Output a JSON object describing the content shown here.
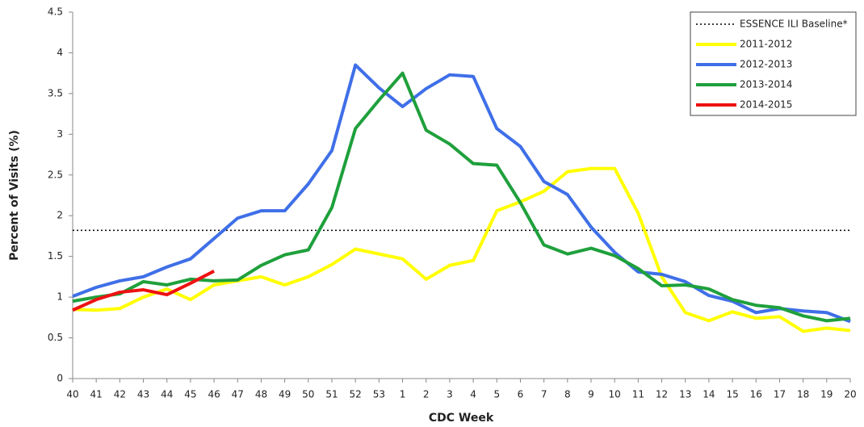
{
  "chart_data": {
    "type": "line",
    "xlabel": "CDC Week",
    "ylabel": "Percent of Visits (%)",
    "categories": [
      "40",
      "41",
      "42",
      "43",
      "44",
      "45",
      "46",
      "47",
      "48",
      "49",
      "50",
      "51",
      "52",
      "53",
      "1",
      "2",
      "3",
      "4",
      "5",
      "6",
      "7",
      "8",
      "9",
      "10",
      "11",
      "12",
      "13",
      "14",
      "15",
      "16",
      "17",
      "18",
      "19",
      "20"
    ],
    "ylim": [
      0,
      4.5
    ],
    "yticks": [
      0,
      0.5,
      1,
      1.5,
      2,
      2.5,
      3,
      3.5,
      4,
      4.5
    ],
    "legend": "top-right",
    "series": [
      {
        "name": "ESSENCE ILI Baseline*",
        "color": "#000000",
        "style": "dotted",
        "values": [
          1.82,
          1.82,
          1.82,
          1.82,
          1.82,
          1.82,
          1.82,
          1.82,
          1.82,
          1.82,
          1.82,
          1.82,
          1.82,
          1.82,
          1.82,
          1.82,
          1.82,
          1.82,
          1.82,
          1.82,
          1.82,
          1.82,
          1.82,
          1.82,
          1.82,
          1.82,
          1.82,
          1.82,
          1.82,
          1.82,
          1.82,
          1.82,
          1.82,
          1.82
        ]
      },
      {
        "name": "2011-2012",
        "color": "#ffff00",
        "style": "solid",
        "values": [
          0.85,
          0.84,
          0.86,
          1.0,
          1.1,
          0.97,
          1.15,
          1.2,
          1.25,
          1.15,
          1.25,
          1.4,
          1.59,
          1.53,
          1.47,
          1.22,
          1.39,
          1.45,
          2.06,
          2.17,
          2.3,
          2.54,
          2.58,
          2.58,
          2.03,
          1.25,
          0.81,
          0.71,
          0.82,
          0.74,
          0.76,
          0.58,
          0.62,
          0.59
        ]
      },
      {
        "name": "2012-2013",
        "color": "#3f6fe8",
        "style": "solid",
        "values": [
          1.01,
          1.12,
          1.2,
          1.25,
          1.37,
          1.47,
          1.72,
          1.97,
          2.06,
          2.06,
          2.39,
          2.8,
          3.85,
          3.57,
          3.34,
          3.56,
          3.73,
          3.71,
          3.07,
          2.85,
          2.42,
          2.26,
          1.86,
          1.55,
          1.31,
          1.28,
          1.19,
          1.02,
          0.95,
          0.81,
          0.86,
          0.83,
          0.81,
          0.7
        ]
      },
      {
        "name": "2013-2014",
        "color": "#1fa03c",
        "style": "solid",
        "values": [
          0.95,
          1.0,
          1.04,
          1.19,
          1.15,
          1.22,
          1.2,
          1.21,
          1.39,
          1.52,
          1.58,
          2.1,
          3.07,
          3.42,
          3.75,
          3.05,
          2.88,
          2.64,
          2.62,
          2.16,
          1.64,
          1.53,
          1.6,
          1.51,
          1.35,
          1.14,
          1.15,
          1.1,
          0.97,
          0.9,
          0.87,
          0.77,
          0.71,
          0.74
        ]
      },
      {
        "name": "2014-2015",
        "color": "#ee1111",
        "style": "solid",
        "values": [
          0.84,
          0.97,
          1.06,
          1.09,
          1.03,
          1.17,
          1.32,
          null,
          null,
          null,
          null,
          null,
          null,
          null,
          null,
          null,
          null,
          null,
          null,
          null,
          null,
          null,
          null,
          null,
          null,
          null,
          null,
          null,
          null,
          null,
          null,
          null,
          null,
          null
        ]
      }
    ]
  }
}
